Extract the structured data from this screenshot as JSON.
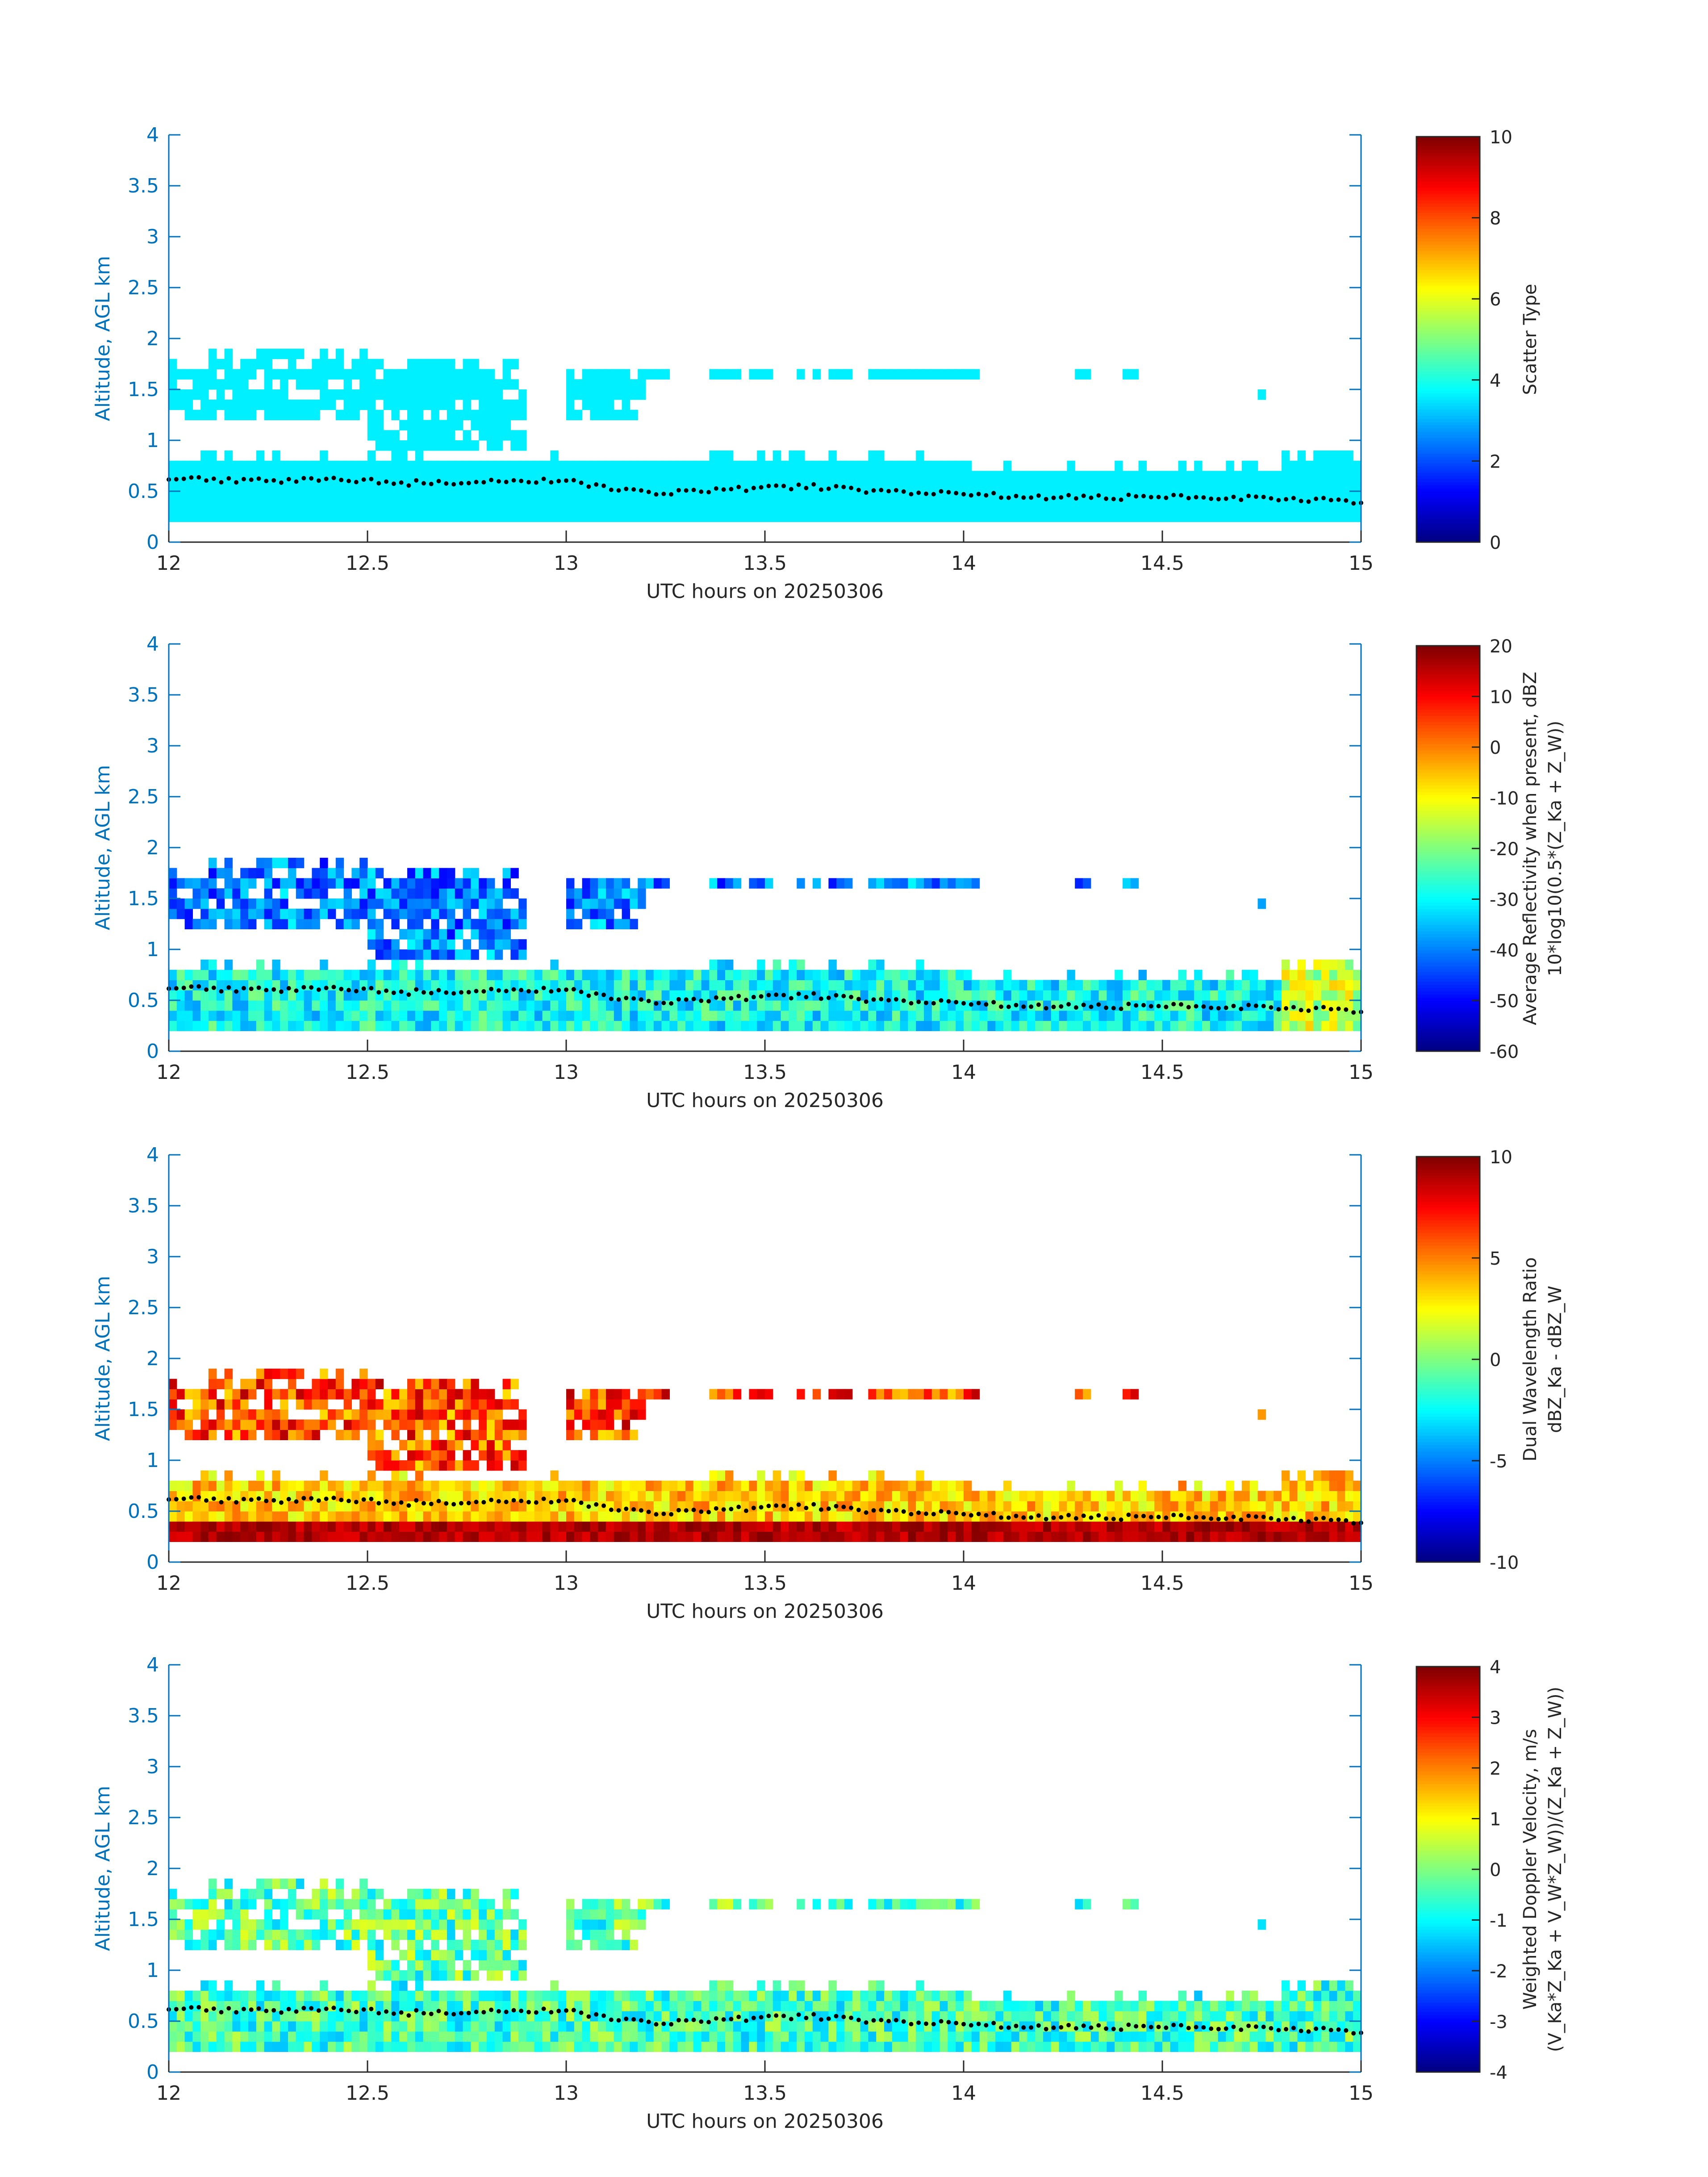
{
  "chart_data": [
    {
      "type": "heatmap",
      "xlabel": "UTC hours on 20250306",
      "ylabel": "Altitude, AGL km",
      "xlim": [
        12,
        15
      ],
      "ylim": [
        0,
        4
      ],
      "x_ticks": [
        "12",
        "12.5",
        "13",
        "13.5",
        "14",
        "14.5",
        "15"
      ],
      "y_ticks": [
        "0",
        "0.5",
        "1",
        "1.5",
        "2",
        "2.5",
        "3",
        "3.5",
        "4"
      ],
      "colorbar": {
        "label_lines": [
          "Scatter Type"
        ],
        "range": [
          0,
          10
        ],
        "ticks": [
          "0",
          "2",
          "4",
          "6",
          "8",
          "10"
        ]
      },
      "field": "scatter_type",
      "field_value": 3.6
    },
    {
      "type": "heatmap",
      "xlabel": "UTC hours on 20250306",
      "ylabel": "Altitude, AGL km",
      "xlim": [
        12,
        15
      ],
      "ylim": [
        0,
        4
      ],
      "x_ticks": [
        "12",
        "12.5",
        "13",
        "13.5",
        "14",
        "14.5",
        "15"
      ],
      "y_ticks": [
        "0",
        "0.5",
        "1",
        "1.5",
        "2",
        "2.5",
        "3",
        "3.5",
        "4"
      ],
      "colorbar": {
        "label_lines": [
          "Average Reflectivity when present, dBZ",
          "10*log10(0.5*(Z_Ka + Z_W))"
        ],
        "range": [
          -60,
          20
        ],
        "ticks": [
          "-60",
          "-50",
          "-40",
          "-30",
          "-20",
          "-10",
          "0",
          "10",
          "20"
        ]
      },
      "field": "reflectivity"
    },
    {
      "type": "heatmap",
      "xlabel": "UTC hours on 20250306",
      "ylabel": "Altitude, AGL km",
      "xlim": [
        12,
        15
      ],
      "ylim": [
        0,
        4
      ],
      "x_ticks": [
        "12",
        "12.5",
        "13",
        "13.5",
        "14",
        "14.5",
        "15"
      ],
      "y_ticks": [
        "0",
        "0.5",
        "1",
        "1.5",
        "2",
        "2.5",
        "3",
        "3.5",
        "4"
      ],
      "colorbar": {
        "label_lines": [
          "Dual Wavelength Ratio",
          "dBZ_Ka - dBZ_W"
        ],
        "range": [
          -10,
          10
        ],
        "ticks": [
          "-10",
          "-5",
          "0",
          "5",
          "10"
        ]
      },
      "field": "dwr"
    },
    {
      "type": "heatmap",
      "xlabel": "UTC hours on 20250306",
      "ylabel": "Altitude, AGL km",
      "xlim": [
        12,
        15
      ],
      "ylim": [
        0,
        4
      ],
      "x_ticks": [
        "12",
        "12.5",
        "13",
        "13.5",
        "14",
        "14.5",
        "15"
      ],
      "y_ticks": [
        "0",
        "0.5",
        "1",
        "1.5",
        "2",
        "2.5",
        "3",
        "3.5",
        "4"
      ],
      "colorbar": {
        "label_lines": [
          "Weighted Doppler Velocity, m/s",
          "(V_Ka*Z_Ka + V_W*Z_W))/(Z_Ka + Z_W))"
        ],
        "range": [
          -4,
          4
        ],
        "ticks": [
          "-4",
          "-3",
          "-2",
          "-1",
          "0",
          "1",
          "2",
          "3",
          "4"
        ]
      },
      "field": "velocity"
    }
  ],
  "regions": {
    "upper_cloud": [
      {
        "x0": 12.0,
        "x1": 12.1,
        "y0": 1.25,
        "y1": 1.8
      },
      {
        "x0": 12.1,
        "x1": 12.5,
        "y0": 1.25,
        "y1": 1.9
      },
      {
        "x0": 12.5,
        "x1": 12.9,
        "y0": 0.95,
        "y1": 1.85
      },
      {
        "x0": 13.0,
        "x1": 13.2,
        "y0": 1.2,
        "y1": 1.75
      },
      {
        "x0": 13.2,
        "x1": 14.05,
        "y0": 1.58,
        "y1": 1.75
      }
    ],
    "lower_layer": [
      {
        "x0": 12.0,
        "x1": 14.0,
        "y0": 0.2,
        "y1": 0.88
      },
      {
        "x0": 14.0,
        "x1": 14.8,
        "y0": 0.2,
        "y1": 0.78
      },
      {
        "x0": 14.8,
        "x1": 15.0,
        "y0": 0.2,
        "y1": 0.92
      }
    ],
    "isolated_specks": [
      {
        "x": 14.3,
        "y": 1.65
      },
      {
        "x": 14.42,
        "y": 1.62
      },
      {
        "x": 14.75,
        "y": 1.45
      }
    ]
  },
  "dotted_line": {
    "x": [
      12.0,
      12.2,
      12.4,
      12.6,
      12.8,
      13.0,
      13.2,
      13.4,
      13.6,
      13.8,
      14.0,
      14.2,
      14.4,
      14.6,
      14.8,
      15.0
    ],
    "y": [
      0.63,
      0.6,
      0.62,
      0.58,
      0.6,
      0.6,
      0.48,
      0.52,
      0.55,
      0.5,
      0.48,
      0.44,
      0.44,
      0.45,
      0.42,
      0.4
    ]
  }
}
